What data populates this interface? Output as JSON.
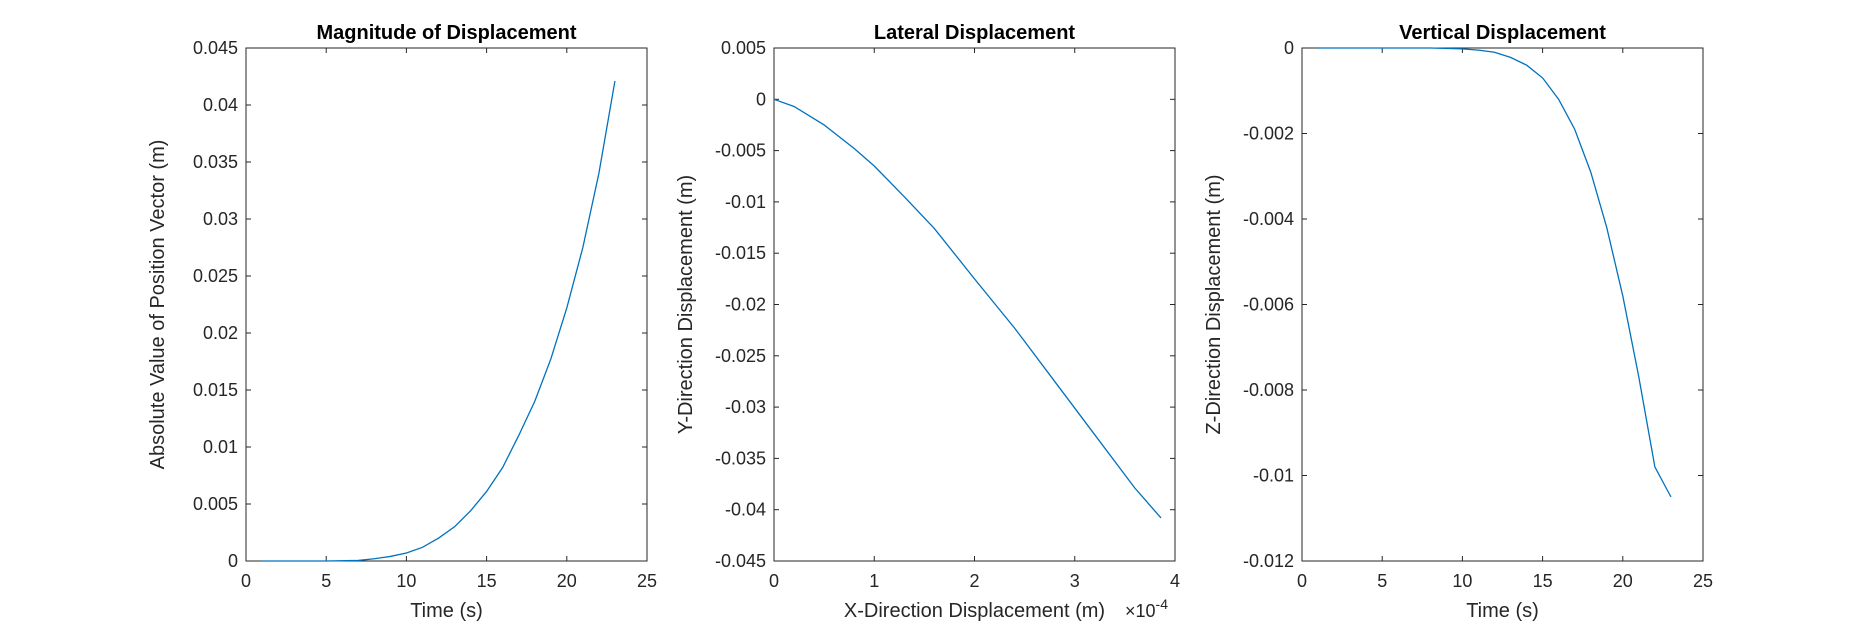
{
  "colors": {
    "series": "#0072BD",
    "axis": "#262626",
    "background": "#ffffff"
  },
  "chart_data": [
    {
      "type": "line",
      "title": "Magnitude of Displacement",
      "xlabel": "Time (s)",
      "ylabel": "Absolute Value of Position Vector (m)",
      "xlim": [
        0,
        25
      ],
      "ylim": [
        0,
        0.045
      ],
      "xticks": [
        0,
        5,
        10,
        15,
        20,
        25
      ],
      "xtick_labels": [
        "0",
        "5",
        "10",
        "15",
        "20",
        "25"
      ],
      "yticks": [
        0,
        0.005,
        0.01,
        0.015,
        0.02,
        0.025,
        0.03,
        0.035,
        0.04,
        0.045
      ],
      "ytick_labels": [
        "0",
        "0.005",
        "0.01",
        "0.015",
        "0.02",
        "0.025",
        "0.03",
        "0.035",
        "0.04",
        "0.045"
      ],
      "x_exponent_label": "",
      "grid": false,
      "series": [
        {
          "x": [
            1,
            3,
            5,
            7,
            8,
            9,
            10,
            11,
            12,
            13,
            14,
            15,
            16,
            17,
            18,
            19,
            20,
            21,
            22,
            23
          ],
          "y": [
            0,
            0,
            0,
            5e-05,
            0.0002,
            0.0004,
            0.0007,
            0.0012,
            0.002,
            0.003,
            0.0044,
            0.0061,
            0.0082,
            0.011,
            0.014,
            0.0177,
            0.0222,
            0.0275,
            0.034,
            0.0421
          ]
        }
      ]
    },
    {
      "type": "line",
      "title": "Lateral Displacement",
      "xlabel": "X-Direction Displacement (m)",
      "ylabel": "Y-Direction Displacement (m)",
      "xlim": [
        0,
        0.0004
      ],
      "ylim": [
        -0.045,
        0.005
      ],
      "xticks": [
        0,
        0.0001,
        0.0002,
        0.0003,
        0.0004
      ],
      "xtick_labels": [
        "0",
        "1",
        "2",
        "3",
        "4"
      ],
      "yticks": [
        -0.045,
        -0.04,
        -0.035,
        -0.03,
        -0.025,
        -0.02,
        -0.015,
        -0.01,
        -0.005,
        0,
        0.005
      ],
      "ytick_labels": [
        "-0.045",
        "-0.04",
        "-0.035",
        "-0.03",
        "-0.025",
        "-0.02",
        "-0.015",
        "-0.01",
        "-0.005",
        "0",
        "0.005"
      ],
      "x_exponent_label": "×10",
      "x_exponent_power": "-4",
      "grid": false,
      "series": [
        {
          "x": [
            0,
            2e-05,
            5e-05,
            8e-05,
            0.0001,
            0.00013,
            0.00016,
            0.0002,
            0.00024,
            0.00028,
            0.00032,
            0.00036,
            0.000386
          ],
          "y": [
            0,
            -0.0007,
            -0.0025,
            -0.0048,
            -0.0065,
            -0.0095,
            -0.0126,
            -0.0175,
            -0.0223,
            -0.0275,
            -0.0327,
            -0.0379,
            -0.0408
          ]
        }
      ]
    },
    {
      "type": "line",
      "title": "Vertical Displacement",
      "xlabel": "Time (s)",
      "ylabel": "Z-Direction Displacement (m)",
      "xlim": [
        0,
        25
      ],
      "ylim": [
        -0.012,
        0
      ],
      "xticks": [
        0,
        5,
        10,
        15,
        20,
        25
      ],
      "xtick_labels": [
        "0",
        "5",
        "10",
        "15",
        "20",
        "25"
      ],
      "yticks": [
        -0.012,
        -0.01,
        -0.008,
        -0.006,
        -0.004,
        -0.002,
        0
      ],
      "ytick_labels": [
        "-0.012",
        "-0.01",
        "-0.008",
        "-0.006",
        "-0.004",
        "-0.002",
        "0"
      ],
      "x_exponent_label": "",
      "grid": false,
      "series": [
        {
          "x": [
            1,
            5,
            8,
            10,
            11,
            12,
            13,
            14,
            15,
            16,
            17,
            18,
            19,
            20,
            21,
            22,
            23
          ],
          "y": [
            0,
            0,
            0,
            -2e-05,
            -5e-05,
            -0.0001,
            -0.00022,
            -0.0004,
            -0.0007,
            -0.0012,
            -0.0019,
            -0.0029,
            -0.0042,
            -0.0058,
            -0.0077,
            -0.0098,
            -0.0105
          ]
        }
      ]
    }
  ]
}
